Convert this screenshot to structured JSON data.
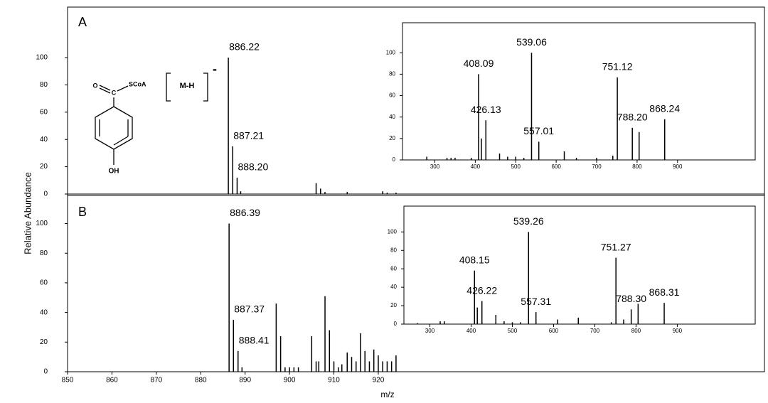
{
  "chart_data": [
    {
      "type": "bar",
      "panel": "A",
      "structure_labels": {
        "oxygen": "O",
        "carbon": "C",
        "thioester": "SCoA",
        "hydroxyl": "OH",
        "ion": "M-H",
        "charge": "-"
      },
      "x": [
        886.22,
        887.21,
        888.2,
        889,
        906,
        907,
        908,
        913,
        921,
        922,
        924
      ],
      "values": [
        100,
        35,
        12,
        2,
        8,
        4,
        1.5,
        1.5,
        2,
        1,
        1
      ],
      "annotations": [
        {
          "text": "886.22",
          "x": 886.22,
          "y": 100
        },
        {
          "text": "887.21",
          "x": 887.21,
          "y": 35
        },
        {
          "text": "888.20",
          "x": 888.2,
          "y": 12
        }
      ],
      "xlim": [
        850,
        1007
      ],
      "ylim": [
        0,
        137
      ],
      "yticks": [
        0,
        20,
        40,
        60,
        80,
        100
      ],
      "color": "#000000"
    },
    {
      "type": "bar",
      "x": [
        280,
        330,
        340,
        350,
        390,
        408.09,
        415,
        426.13,
        460,
        480,
        500,
        520,
        539.06,
        557.01,
        620,
        650,
        700,
        740,
        751.12,
        788.2,
        805,
        868.24
      ],
      "values": [
        3,
        2,
        2,
        2,
        2,
        80,
        20,
        37,
        6,
        3,
        3,
        2,
        100,
        17,
        8,
        2,
        2,
        4,
        77,
        30,
        26,
        38
      ],
      "annotations": [
        {
          "text": "408.09",
          "x": 408.09,
          "y": 80
        },
        {
          "text": "426.13",
          "x": 426.13,
          "y": 37
        },
        {
          "text": "539.06",
          "x": 539.06,
          "y": 100
        },
        {
          "text": "557.01",
          "x": 557.01,
          "y": 17
        },
        {
          "text": "751.12",
          "x": 751.12,
          "y": 77
        },
        {
          "text": "788.20",
          "x": 788.2,
          "y": 30
        },
        {
          "text": "868.24",
          "x": 868.24,
          "y": 38
        }
      ],
      "xlim": [
        220,
        1092
      ],
      "ylim": [
        0,
        128
      ],
      "xticks": [
        300,
        400,
        500,
        600,
        700,
        800,
        900
      ],
      "yticks": [
        0,
        20,
        40,
        60,
        80,
        100
      ],
      "color": "#000000"
    },
    {
      "type": "bar",
      "panel": "B",
      "xlabel": "m/z",
      "ylabel": "Relative Abundance",
      "x": [
        886.39,
        887.37,
        888.41,
        889.3,
        897,
        898,
        899,
        900,
        901,
        902,
        905,
        906,
        906.6,
        908,
        909,
        910,
        911,
        911.8,
        913,
        914,
        915,
        916,
        917,
        918,
        919,
        920,
        921,
        922,
        923,
        924
      ],
      "values": [
        100,
        35,
        14,
        3,
        46,
        24,
        3,
        3,
        3,
        3,
        24,
        7,
        7,
        51,
        28,
        7,
        3,
        5,
        13,
        10,
        7,
        26,
        14,
        7,
        15,
        11,
        7,
        7,
        7,
        11
      ],
      "annotations": [
        {
          "text": "886.39",
          "x": 886.39,
          "y": 100
        },
        {
          "text": "887.37",
          "x": 887.37,
          "y": 35
        },
        {
          "text": "888.41",
          "x": 888.41,
          "y": 14
        }
      ],
      "xlim": [
        850,
        1007
      ],
      "ylim": [
        0,
        118
      ],
      "xticks": [
        850,
        860,
        870,
        880,
        890,
        900,
        910,
        920
      ],
      "yticks": [
        0,
        20,
        40,
        60,
        80,
        100
      ],
      "color": "#000000"
    },
    {
      "type": "bar",
      "x": [
        270,
        325,
        335,
        408.15,
        415,
        426.22,
        460,
        480,
        500,
        520,
        539.26,
        557.31,
        610,
        660,
        740,
        751.27,
        770,
        788.3,
        805,
        868.31
      ],
      "values": [
        1,
        3,
        3,
        58,
        18,
        25,
        10,
        3,
        2,
        2,
        100,
        13,
        5,
        7,
        2,
        72,
        5,
        16,
        22,
        23
      ],
      "annotations": [
        {
          "text": "408.15",
          "x": 408.15,
          "y": 58
        },
        {
          "text": "426.22",
          "x": 426.22,
          "y": 25
        },
        {
          "text": "539.26",
          "x": 539.26,
          "y": 100
        },
        {
          "text": "557.31",
          "x": 557.31,
          "y": 13
        },
        {
          "text": "751.27",
          "x": 751.27,
          "y": 72
        },
        {
          "text": "788.30",
          "x": 788.3,
          "y": 16
        },
        {
          "text": "868.31",
          "x": 868.31,
          "y": 23
        }
      ],
      "xlim": [
        237,
        1089
      ],
      "ylim": [
        0,
        128
      ],
      "xticks": [
        300,
        400,
        500,
        600,
        700,
        800,
        900
      ],
      "yticks": [
        0,
        20,
        40,
        60,
        80,
        100
      ],
      "color": "#000000"
    }
  ]
}
